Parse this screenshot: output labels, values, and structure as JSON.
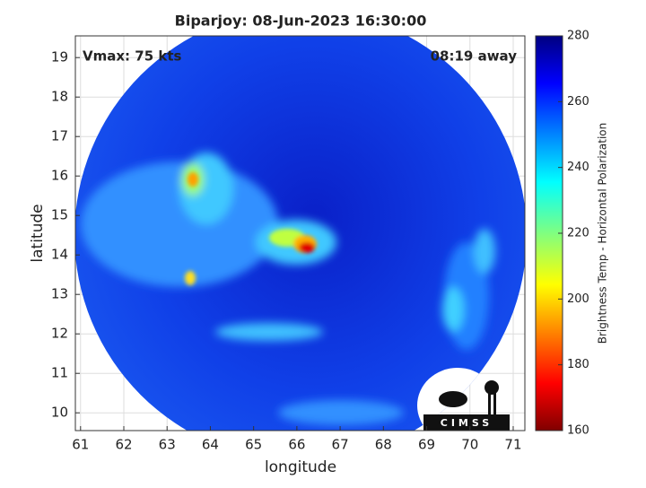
{
  "chart_data": {
    "type": "image",
    "title": "Biparjoy: 08-Jun-2023 16:30:00",
    "annotations": [
      "Vmax: 75 kts",
      "08:19 away"
    ],
    "xlabel": "longitude",
    "ylabel": "latitude",
    "xlim": [
      60.88,
      71.27
    ],
    "xticks": [
      61,
      62,
      63,
      64,
      65,
      66,
      67,
      68,
      69,
      70,
      71
    ],
    "ylim": [
      9.55,
      19.55
    ],
    "yticks": [
      10,
      11,
      12,
      13,
      14,
      15,
      16,
      17,
      18,
      19
    ],
    "grid": true,
    "colorbar": {
      "label": "Brightness Temp - Horizontal Polarization",
      "lim": [
        160,
        280
      ],
      "ticks": [
        160,
        180,
        200,
        220,
        240,
        260,
        280
      ],
      "colormap": "jet"
    },
    "logo": "CIMSS"
  }
}
